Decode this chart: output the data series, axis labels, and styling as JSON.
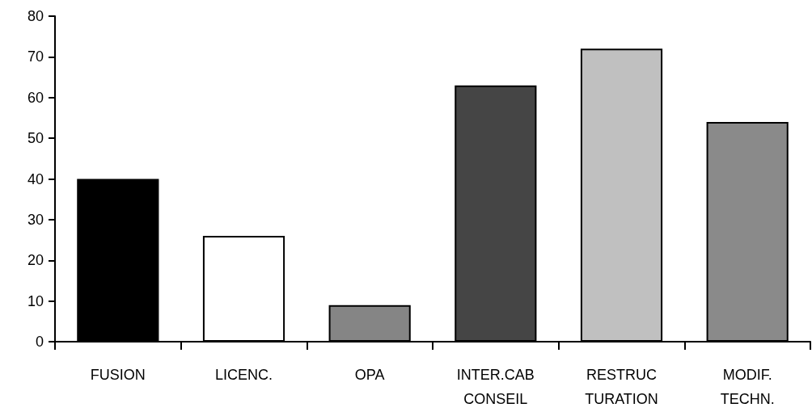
{
  "chart_data": {
    "type": "bar",
    "categories": [
      "FUSION",
      "LICENC.",
      "OPA",
      "INTER.CAB\nCONSEIL",
      "RESTRUC\nTURATION",
      "MODIF.\nTECHN."
    ],
    "values": [
      40,
      26,
      9,
      63,
      72,
      54
    ],
    "colors": [
      "#000000",
      "#ffffff",
      "#858585",
      "#454545",
      "#c0c0c0",
      "#8a8a8a"
    ],
    "ylim": [
      0,
      80
    ],
    "yticks": [
      0,
      10,
      20,
      30,
      40,
      50,
      60,
      70,
      80
    ],
    "grid": false
  }
}
